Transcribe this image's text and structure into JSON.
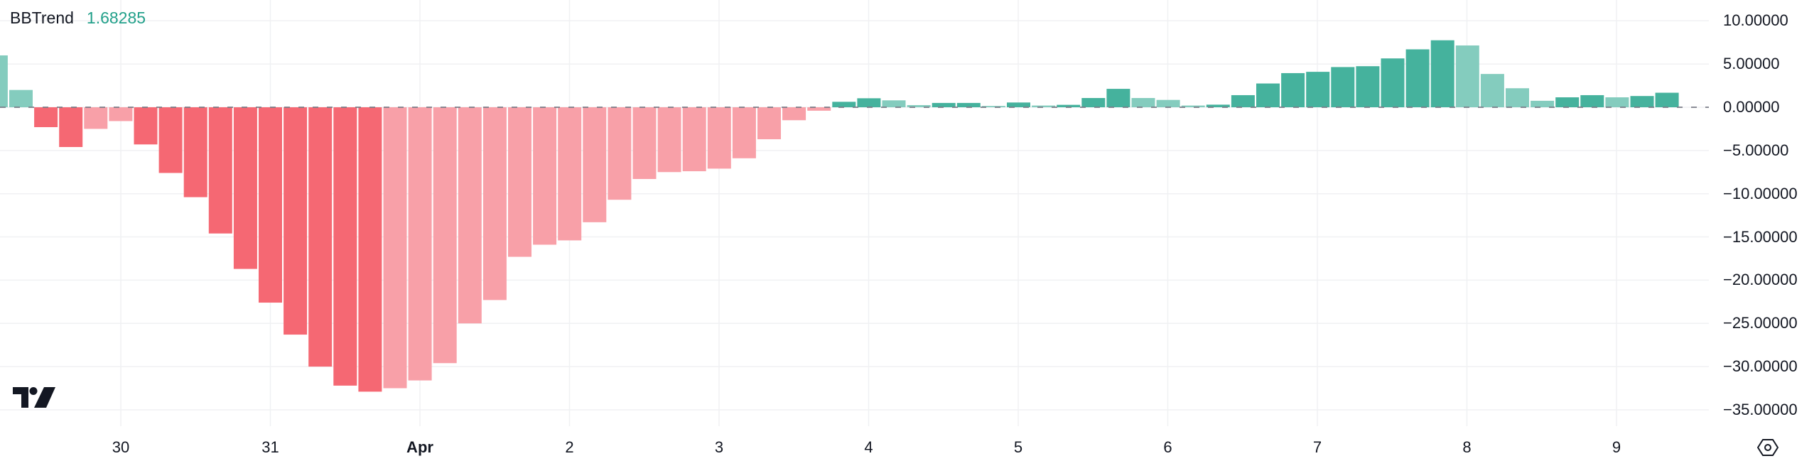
{
  "legend": {
    "name": "BBTrend",
    "value": "1.68285"
  },
  "colors": {
    "pos_strong": "#45B29D",
    "pos_weak": "#84CCBE",
    "neg_strong": "#F56873",
    "neg_weak": "#F8A0A8",
    "grid": "#F0F1F3",
    "zero_line": "#787B86",
    "legend_value": "#22A08A"
  },
  "y_axis": {
    "ticks": [
      "10.00000",
      "5.00000",
      "0.00000",
      "−5.00000",
      "−10.00000",
      "−15.00000",
      "−20.00000",
      "−25.00000",
      "−30.00000",
      "−35.00000"
    ],
    "tick_values": [
      10,
      5,
      0,
      -5,
      -10,
      -15,
      -20,
      -25,
      -30,
      -35
    ]
  },
  "x_axis": {
    "labels": [
      {
        "text": "30",
        "bold": false
      },
      {
        "text": "31",
        "bold": false
      },
      {
        "text": "Apr",
        "bold": true
      },
      {
        "text": "2",
        "bold": false
      },
      {
        "text": "3",
        "bold": false
      },
      {
        "text": "4",
        "bold": false
      },
      {
        "text": "5",
        "bold": false
      },
      {
        "text": "6",
        "bold": false
      },
      {
        "text": "7",
        "bold": false
      },
      {
        "text": "8",
        "bold": false
      },
      {
        "text": "9",
        "bold": false
      }
    ]
  },
  "icons": {
    "logo": "tradingview-logo-icon",
    "settings": "settings-hexagon-icon"
  },
  "chart_data": {
    "type": "bar",
    "title": "BBTrend",
    "current_value": 1.68285,
    "xlabel": "",
    "ylabel": "",
    "ylim": [
      -36,
      11
    ],
    "grid": true,
    "legend_position": "top-left",
    "x_tick_labels": [
      "30",
      "31",
      "Apr",
      "2",
      "3",
      "4",
      "5",
      "6",
      "7",
      "8",
      "9"
    ],
    "bars_per_day": 6,
    "values": [
      6.0,
      2.0,
      -2.3,
      -4.6,
      -2.5,
      -1.6,
      -4.3,
      -7.6,
      -10.4,
      -14.6,
      -18.7,
      -22.6,
      -26.3,
      -30.0,
      -32.2,
      -32.9,
      -32.5,
      -31.6,
      -29.6,
      -25.0,
      -22.3,
      -17.3,
      -15.9,
      -15.4,
      -13.3,
      -10.7,
      -8.3,
      -7.5,
      -7.4,
      -7.1,
      -5.9,
      -3.7,
      -1.5,
      -0.4,
      0.63,
      1.04,
      0.8,
      0.25,
      0.5,
      0.5,
      0.15,
      0.55,
      0.2,
      0.28,
      1.07,
      2.13,
      1.07,
      0.85,
      0.2,
      0.3,
      1.4,
      2.75,
      3.95,
      4.1,
      4.65,
      4.75,
      5.65,
      6.7,
      7.75,
      7.15,
      3.85,
      2.2,
      0.75,
      1.15,
      1.4,
      1.15,
      1.3,
      1.68
    ],
    "strength": [
      "weak",
      "weak",
      "strong",
      "strong",
      "weak",
      "weak",
      "strong",
      "strong",
      "strong",
      "strong",
      "strong",
      "strong",
      "strong",
      "strong",
      "strong",
      "strong",
      "weak",
      "weak",
      "weak",
      "weak",
      "weak",
      "weak",
      "weak",
      "weak",
      "weak",
      "weak",
      "weak",
      "weak",
      "weak",
      "weak",
      "weak",
      "weak",
      "weak",
      "weak",
      "strong",
      "strong",
      "weak",
      "weak",
      "strong",
      "strong",
      "weak",
      "strong",
      "weak",
      "strong",
      "strong",
      "strong",
      "weak",
      "weak",
      "weak",
      "strong",
      "strong",
      "strong",
      "strong",
      "strong",
      "strong",
      "strong",
      "strong",
      "strong",
      "strong",
      "weak",
      "weak",
      "weak",
      "weak",
      "strong",
      "strong",
      "weak",
      "strong",
      "strong"
    ]
  }
}
